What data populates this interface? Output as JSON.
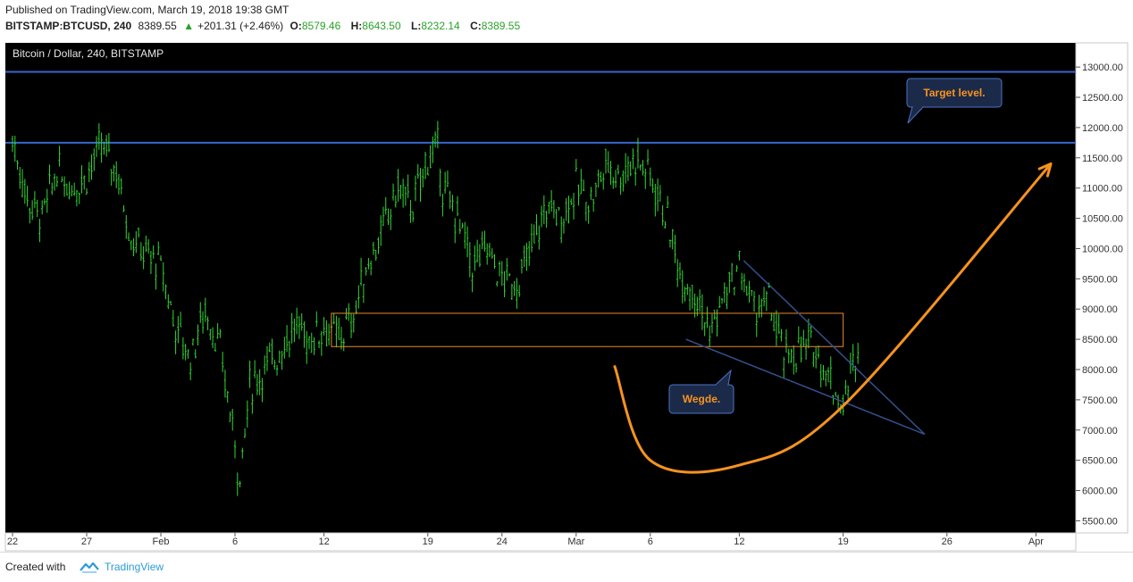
{
  "header": {
    "published": "Published on TradingView.com, March 19, 2018 19:38 GMT",
    "symbol": "BITSTAMP:BTCUSD, 240",
    "last": "8389.55",
    "change_arrow": "▲",
    "change": "+201.31 (+2.46%)",
    "o_label": "O:",
    "o": "8579.46",
    "h_label": "H:",
    "h": "8643.50",
    "l_label": "L:",
    "l": "8232.14",
    "c_label": "C:",
    "c": "8389.55"
  },
  "chart_title": "Bitcoin / Dollar, 240, BITSTAMP",
  "footer": {
    "created_with": "Created with",
    "brand": "TradingView"
  },
  "colors": {
    "background": "#000000",
    "candle": "#33d633",
    "level_line": "#3a66cc",
    "zone": "#e8892a",
    "arc": "#f7931e",
    "wedge": "#34508e",
    "callout_bg": "#1c2a4a",
    "callout_border": "#4a74c4",
    "callout_text": "#f7931e"
  },
  "annotations": {
    "target": "Target level.",
    "wedge": "Wegde."
  },
  "chart_data": {
    "type": "candlestick",
    "y_axis_ticks": [
      "13000.00",
      "12500.00",
      "12000.00",
      "11500.00",
      "11000.00",
      "10500.00",
      "10000.00",
      "9500.00",
      "9000.00",
      "8500.00",
      "8000.00",
      "7500.00",
      "7000.00",
      "6500.00",
      "6000.00",
      "5500.00"
    ],
    "ylim": [
      5300,
      13400
    ],
    "x_axis_ticks": [
      {
        "label": "22",
        "day": 0
      },
      {
        "label": "27",
        "day": 5
      },
      {
        "label": "Feb",
        "day": 10
      },
      {
        "label": "6",
        "day": 15
      },
      {
        "label": "12",
        "day": 21
      },
      {
        "label": "19",
        "day": 28
      },
      {
        "label": "24",
        "day": 33
      },
      {
        "label": "Mar",
        "day": 38
      },
      {
        "label": "6",
        "day": 43
      },
      {
        "label": "12",
        "day": 49
      },
      {
        "label": "19",
        "day": 56
      },
      {
        "label": "26",
        "day": 63
      },
      {
        "label": "Apr",
        "day": 69
      }
    ],
    "price_path": [
      {
        "day": 0,
        "price": 11800
      },
      {
        "day": 1,
        "price": 10800
      },
      {
        "day": 2,
        "price": 10500
      },
      {
        "day": 3,
        "price": 11300
      },
      {
        "day": 4,
        "price": 11000
      },
      {
        "day": 5,
        "price": 11200
      },
      {
        "day": 6,
        "price": 11700
      },
      {
        "day": 7,
        "price": 11300
      },
      {
        "day": 8,
        "price": 10200
      },
      {
        "day": 9,
        "price": 9900
      },
      {
        "day": 10,
        "price": 9700
      },
      {
        "day": 11,
        "price": 8700
      },
      {
        "day": 12,
        "price": 8200
      },
      {
        "day": 13,
        "price": 9000
      },
      {
        "day": 14,
        "price": 8300
      },
      {
        "day": 15,
        "price": 6800
      },
      {
        "day": 15.3,
        "price": 6100
      },
      {
        "day": 16,
        "price": 7700
      },
      {
        "day": 17,
        "price": 8000
      },
      {
        "day": 18,
        "price": 8300
      },
      {
        "day": 19,
        "price": 8700
      },
      {
        "day": 20,
        "price": 8500
      },
      {
        "day": 21,
        "price": 8700
      },
      {
        "day": 22,
        "price": 8500
      },
      {
        "day": 23,
        "price": 8900
      },
      {
        "day": 24,
        "price": 9800
      },
      {
        "day": 25,
        "price": 10300
      },
      {
        "day": 26,
        "price": 11000
      },
      {
        "day": 27,
        "price": 10700
      },
      {
        "day": 28,
        "price": 11500
      },
      {
        "day": 28.7,
        "price": 11650
      },
      {
        "day": 29,
        "price": 11000
      },
      {
        "day": 30,
        "price": 10500
      },
      {
        "day": 31,
        "price": 9700
      },
      {
        "day": 32,
        "price": 10000
      },
      {
        "day": 33,
        "price": 9500
      },
      {
        "day": 34,
        "price": 9400
      },
      {
        "day": 35,
        "price": 10000
      },
      {
        "day": 36,
        "price": 10700
      },
      {
        "day": 37,
        "price": 10500
      },
      {
        "day": 38,
        "price": 11000
      },
      {
        "day": 39,
        "price": 10800
      },
      {
        "day": 40,
        "price": 11400
      },
      {
        "day": 41,
        "price": 11200
      },
      {
        "day": 42,
        "price": 11500
      },
      {
        "day": 43,
        "price": 11200
      },
      {
        "day": 44,
        "price": 10600
      },
      {
        "day": 45,
        "price": 9600
      },
      {
        "day": 46,
        "price": 9300
      },
      {
        "day": 47,
        "price": 8600
      },
      {
        "day": 48,
        "price": 9200
      },
      {
        "day": 49,
        "price": 9700
      },
      {
        "day": 50,
        "price": 9000
      },
      {
        "day": 51,
        "price": 9100
      },
      {
        "day": 52,
        "price": 8200
      },
      {
        "day": 53,
        "price": 8300
      },
      {
        "day": 54,
        "price": 8400
      },
      {
        "day": 55,
        "price": 7900
      },
      {
        "day": 56,
        "price": 7400
      },
      {
        "day": 57,
        "price": 8400
      }
    ],
    "levels": [
      12920,
      11750
    ],
    "zone": {
      "day_start": 21.5,
      "day_end": 56,
      "price_low": 8380,
      "price_high": 8930
    },
    "wedge": {
      "upper": [
        {
          "day": 49.3,
          "price": 9800
        },
        {
          "day": 61.5,
          "price": 6930
        }
      ],
      "lower": [
        {
          "day": 45.4,
          "price": 8500
        },
        {
          "day": 61.5,
          "price": 6930
        }
      ]
    },
    "projection_arc": [
      {
        "day": 40.6,
        "price": 8050
      },
      {
        "day": 43,
        "price": 6500
      },
      {
        "day": 49,
        "price": 6420
      },
      {
        "day": 56,
        "price": 7400
      },
      {
        "day": 70,
        "price": 11400
      }
    ]
  }
}
